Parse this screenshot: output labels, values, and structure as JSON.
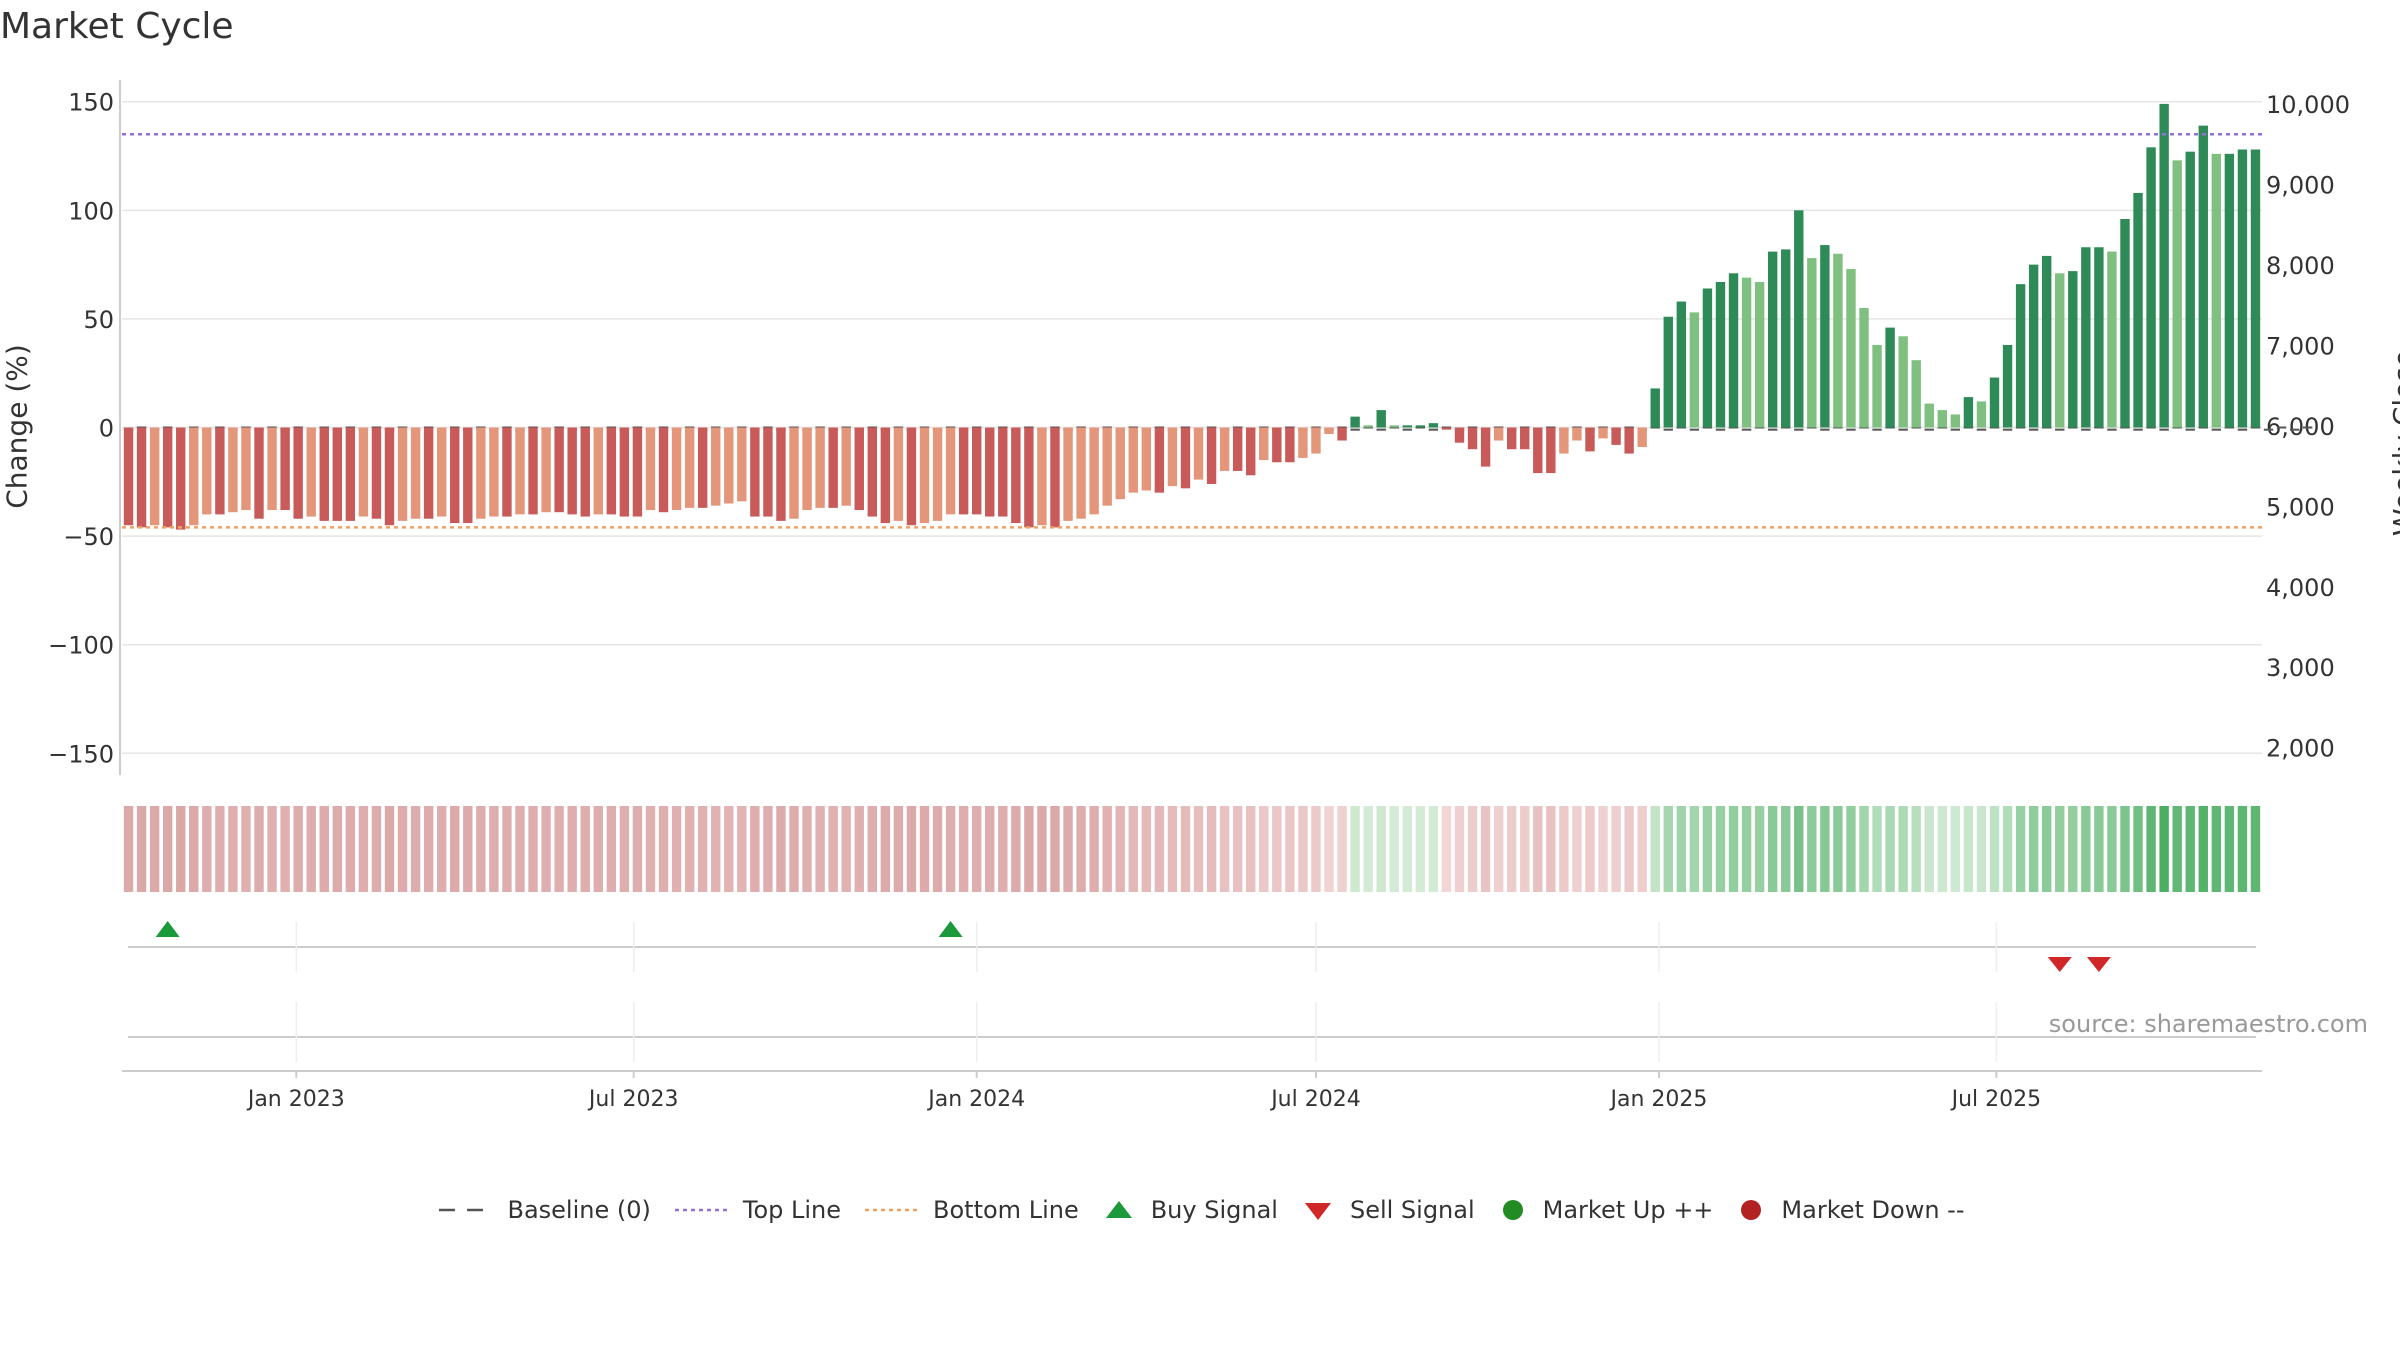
{
  "chart_data": {
    "type": "bar",
    "title": "Market Cycle",
    "ylabel": "Change (%)",
    "y2label": "Weekly Close Price",
    "ylim": [
      -160,
      160
    ],
    "y2lim": [
      1660,
      10300
    ],
    "yticks": [
      150,
      100,
      50,
      0,
      -50,
      -100,
      -150
    ],
    "ytick_labels": [
      "150",
      "100",
      "50",
      "0",
      "−50",
      "−100",
      "−150"
    ],
    "y2ticks": [
      10000,
      9000,
      8000,
      7000,
      6000,
      5000,
      4000,
      3000,
      2000
    ],
    "y2tick_labels": [
      "10,000",
      "9,000",
      "8,000",
      "7,000",
      "6,000",
      "5,000",
      "4,000",
      "3,000",
      "2,000"
    ],
    "top_line": 135,
    "bottom_line": -46,
    "x_start": "2022-10-03",
    "x_step_days": 7,
    "x_ticks": [
      "2023-01-01",
      "2023-07-01",
      "2024-01-01",
      "2024-07-01",
      "2025-01-01",
      "2025-07-01"
    ],
    "x_tick_labels": [
      "Jan 2023",
      "Jul 2023",
      "Jan 2024",
      "Jul 2024",
      "Jan 2025",
      "Jul 2025"
    ],
    "values": [
      -45,
      -46,
      -45,
      -46,
      -47,
      -45,
      -40,
      -40,
      -39,
      -38,
      -42,
      -38,
      -38,
      -42,
      -41,
      -43,
      -43,
      -43,
      -41,
      -42,
      -45,
      -43,
      -42,
      -42,
      -41,
      -44,
      -44,
      -42,
      -41,
      -41,
      -40,
      -40,
      -39,
      -39,
      -40,
      -41,
      -40,
      -40,
      -41,
      -41,
      -38,
      -39,
      -38,
      -37,
      -37,
      -36,
      -35,
      -34,
      -41,
      -41,
      -43,
      -42,
      -38,
      -37,
      -37,
      -36,
      -38,
      -41,
      -44,
      -43,
      -45,
      -44,
      -43,
      -40,
      -40,
      -40,
      -41,
      -41,
      -44,
      -46,
      -45,
      -46,
      -43,
      -42,
      -40,
      -36,
      -33,
      -30,
      -29,
      -30,
      -27,
      -28,
      -24,
      -26,
      -20,
      -20,
      -22,
      -15,
      -16,
      -16,
      -14,
      -12,
      -3,
      -6,
      5,
      1,
      8,
      1,
      1,
      1,
      2,
      -1,
      -7,
      -10,
      -18,
      -6,
      -10,
      -10,
      -21,
      -21,
      -12,
      -6,
      -11,
      -5,
      -8,
      -12,
      -9,
      18,
      51,
      58,
      53,
      64,
      67,
      71,
      69,
      67,
      81,
      82,
      100,
      78,
      84,
      80,
      73,
      55,
      38,
      46,
      42,
      31,
      11,
      8,
      6,
      14,
      12,
      23,
      38,
      66,
      75,
      79,
      71,
      72,
      83,
      83,
      81,
      96,
      108,
      129,
      149,
      123,
      127,
      139,
      126,
      126,
      128,
      128
    ],
    "baseline_values": [
      -1,
      0,
      -1,
      0,
      -1,
      0,
      -1,
      0,
      -1,
      0,
      -1,
      0,
      -1,
      0,
      -1,
      0,
      -1,
      0,
      -1,
      0,
      -1,
      0,
      -1,
      0,
      -1,
      0,
      -1,
      0,
      -1,
      0,
      -1,
      0,
      -1,
      0,
      -1,
      0,
      -1,
      0,
      -1,
      0,
      -1,
      0,
      -1,
      0,
      -1,
      0,
      -1,
      0,
      -1,
      0,
      -1,
      0,
      -1,
      0,
      -1,
      0,
      -1,
      0,
      -1,
      0,
      -1,
      0,
      -1,
      0,
      -1,
      0,
      -1,
      0,
      -1,
      0,
      -1,
      0,
      -1,
      0,
      -1,
      0,
      -1,
      0,
      -1,
      0,
      -1,
      0,
      -1,
      0,
      -1,
      0,
      -1,
      0,
      -1,
      0,
      -1,
      0,
      -1,
      0,
      -1,
      0,
      -1,
      0,
      -1,
      0,
      -1,
      0,
      -1,
      0,
      -1,
      0,
      -1,
      0,
      -1,
      0,
      -1,
      0,
      -1,
      0,
      -1,
      0,
      -1,
      0,
      -1,
      0,
      -1,
      0,
      -1,
      0,
      -1,
      0,
      -1,
      0,
      -1,
      0,
      -1,
      0,
      -1,
      0,
      -1,
      0,
      -1,
      0,
      -1,
      0,
      -1,
      0,
      -1,
      0,
      -1,
      0,
      -1,
      0,
      -1,
      0,
      -1,
      0,
      -1,
      0,
      -1,
      0,
      -1,
      0,
      -1,
      0,
      -1,
      0,
      -1,
      0,
      -1,
      0,
      -1,
      0
    ],
    "buy_signals": [
      3,
      63
    ],
    "sell_signals": [
      148,
      151
    ],
    "colors": {
      "up_strong": "#2e8b57",
      "up_weak": "#7fbf7f",
      "down_strong": "#c85a5a",
      "down_weak": "#e3967a",
      "top_line": "#9370db",
      "bottom_line": "#f0a060",
      "baseline": "#555555",
      "buy": "#1a9a3a",
      "sell": "#d02828",
      "market_up": "#228b22",
      "market_down": "#b22222",
      "grid": "#e5e5e5",
      "axis": "#cccccc"
    }
  },
  "legend": {
    "baseline": "Baseline (0)",
    "top_line": "Top Line",
    "bottom_line": "Bottom Line",
    "buy": "Buy Signal",
    "sell": "Sell Signal",
    "market_up": "Market Up ++",
    "market_down": "Market Down --"
  },
  "source": "source: sharemaestro.com"
}
